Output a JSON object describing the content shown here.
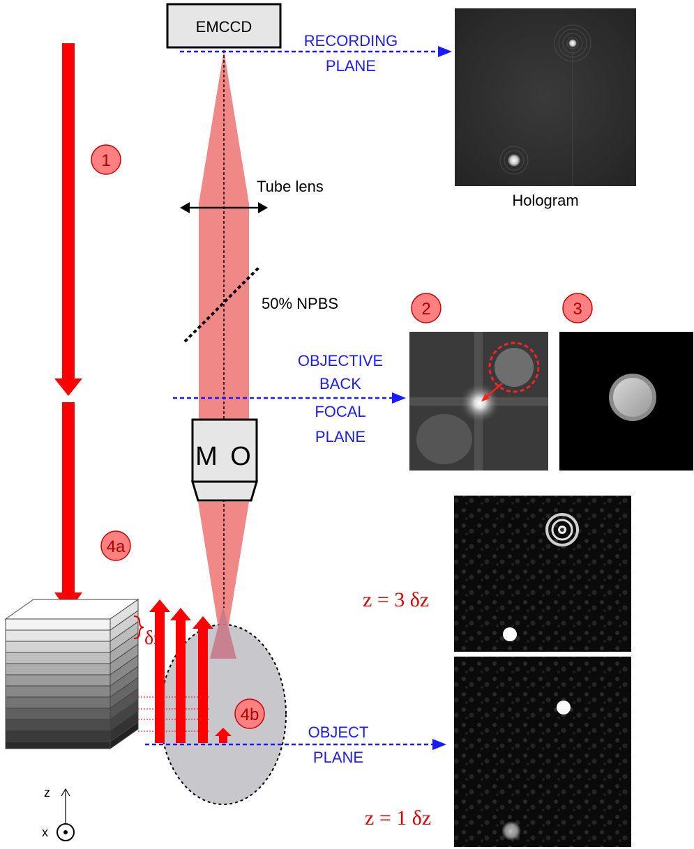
{
  "labels": {
    "emccd": "EMCCD",
    "recording_1": "RECORDING",
    "recording_2": "PLANE",
    "hologram": "Hologram",
    "tube_lens": "Tube lens",
    "npbs": "50% NPBS",
    "bfp_1": "OBJECTIVE",
    "bfp_2": "BACK",
    "bfp_3": "FOCAL",
    "bfp_4": "PLANE",
    "mo_m": "M",
    "mo_o": "O",
    "object_1": "OBJECT",
    "object_2": "PLANE",
    "z3": "z = 3 δz",
    "z1": "z = 1 δz",
    "delta_z": "δz",
    "badge_1": "1",
    "badge_2": "2",
    "badge_3": "3",
    "badge_4a": "4a",
    "badge_4b": "4b",
    "axis_z": "z",
    "axis_x": "x"
  },
  "colors": {
    "beam_red": "#ff0000",
    "light_cone": "#f08888",
    "plane_blue": "#1a1aff",
    "annotation_red": "#e00000",
    "badge_fill": "#ff8080"
  }
}
